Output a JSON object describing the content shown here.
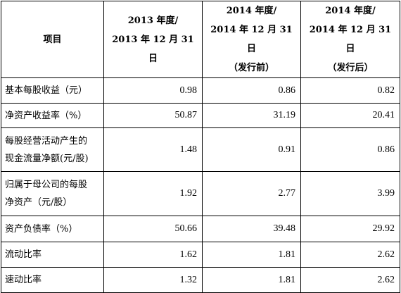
{
  "table": {
    "headers": {
      "item": "项目",
      "col1": [
        "2013 年度/",
        "2013 年 12 月 31 日"
      ],
      "col2": [
        "2014 年度/",
        "2014 年 12 月 31 日",
        "（发行前）"
      ],
      "col3": [
        "2014 年度/",
        "2014 年 12 月 31 日",
        "（发行后）"
      ]
    },
    "rows": [
      {
        "label": [
          "基本每股收益（元）"
        ],
        "values": [
          "0.98",
          "0.86",
          "0.82"
        ]
      },
      {
        "label": [
          "净资产收益率（%）"
        ],
        "values": [
          "50.87",
          "31.19",
          "20.41"
        ]
      },
      {
        "label": [
          "每股经营活动产生的",
          "现金流量净额(元/股)"
        ],
        "values": [
          "1.48",
          "0.91",
          "0.86"
        ]
      },
      {
        "label": [
          "归属于母公司的每股",
          "净资产（元/股）"
        ],
        "values": [
          "1.92",
          "2.77",
          "3.99"
        ]
      },
      {
        "label": [
          "资产负债率（%）"
        ],
        "values": [
          "50.66",
          "39.48",
          "29.92"
        ]
      },
      {
        "label": [
          "流动比率"
        ],
        "values": [
          "1.62",
          "1.81",
          "2.62"
        ]
      },
      {
        "label": [
          "速动比率"
        ],
        "values": [
          "1.32",
          "1.81",
          "2.62"
        ]
      }
    ]
  }
}
